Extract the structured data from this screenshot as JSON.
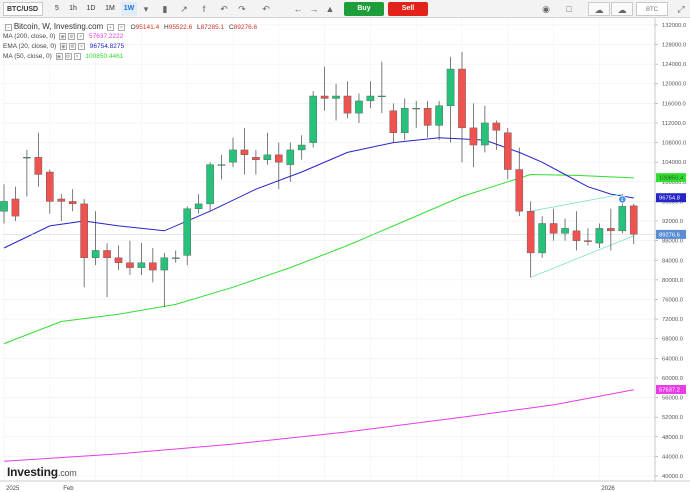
{
  "toolbar": {
    "symbol": "BTC/USD",
    "timeframes": [
      "5",
      "1h",
      "1D",
      "1M",
      "1W"
    ],
    "active_timeframe": "1W",
    "buy_label": "Buy",
    "sell_label": "Sell",
    "currency": "BTC",
    "icons": [
      "chevron-down-icon",
      "candles-icon",
      "indicator-icon",
      "fx-icon",
      "undo-icon",
      "redo-icon",
      "alert-icon",
      "camera-icon",
      "layout-icon",
      "cloud-download-icon",
      "cloud-upload-icon",
      "fullscreen-icon"
    ]
  },
  "legend": {
    "title": "Bitcoin, W, Investing.com",
    "ohlc": [
      {
        "k": "O",
        "v": "95141.4"
      },
      {
        "k": "H",
        "v": "95522.6"
      },
      {
        "k": "L",
        "v": "87285.1"
      },
      {
        "k": "C",
        "v": "89276.6"
      }
    ],
    "indicators": [
      {
        "label": "MA (200, close, 0)",
        "value": "57637.2222",
        "color": "#e63de6"
      },
      {
        "label": "EMA (20, close, 0)",
        "value": "96754.8275",
        "color": "#2424c8"
      },
      {
        "label": "MA (50, close, 0)",
        "value": "100850.4461",
        "color": "#33dd33"
      }
    ]
  },
  "logo": {
    "main": "Investing",
    "suffix": ".com"
  },
  "chart_data": {
    "type": "candlestick",
    "y_ticks": [
      "132000.0",
      "128000.0",
      "124000.0",
      "120000.0",
      "116000.0",
      "112000.0",
      "108000.0",
      "104000.0",
      "100000.0",
      "96000.0",
      "92000.0",
      "88000.0",
      "84000.0",
      "80000.0",
      "76000.0",
      "72000.0",
      "68000.0",
      "64000.0",
      "60000.0",
      "56000.0",
      "52000.0",
      "48000.0",
      "44000.0",
      "40000.0"
    ],
    "x_labels": [
      {
        "label": "2025",
        "index": 0
      },
      {
        "label": "Feb",
        "index": 5
      },
      {
        "label": "2026",
        "index": 52
      }
    ],
    "ylim": [
      40000,
      133000
    ],
    "up_color": "#26c27b",
    "down_color": "#ef5350",
    "candles": [
      {
        "o": 94000,
        "h": 99500,
        "l": 91500,
        "c": 96000
      },
      {
        "o": 96500,
        "h": 99000,
        "l": 92000,
        "c": 93000
      },
      {
        "o": 105000,
        "h": 106500,
        "l": 97000,
        "c": 105000
      },
      {
        "o": 105000,
        "h": 110000,
        "l": 99000,
        "c": 101500
      },
      {
        "o": 102000,
        "h": 102500,
        "l": 93500,
        "c": 96000
      },
      {
        "o": 96500,
        "h": 97500,
        "l": 92000,
        "c": 96000
      },
      {
        "o": 96000,
        "h": 98500,
        "l": 94000,
        "c": 95500
      },
      {
        "o": 95500,
        "h": 96500,
        "l": 78500,
        "c": 84500
      },
      {
        "o": 84500,
        "h": 94000,
        "l": 83000,
        "c": 86000
      },
      {
        "o": 86000,
        "h": 87500,
        "l": 76500,
        "c": 84500
      },
      {
        "o": 84500,
        "h": 87000,
        "l": 82000,
        "c": 83500
      },
      {
        "o": 83500,
        "h": 88000,
        "l": 81000,
        "c": 82500
      },
      {
        "o": 82500,
        "h": 87500,
        "l": 81000,
        "c": 83500
      },
      {
        "o": 83500,
        "h": 86500,
        "l": 79500,
        "c": 82000
      },
      {
        "o": 82000,
        "h": 85500,
        "l": 74500,
        "c": 84500
      },
      {
        "o": 84500,
        "h": 86000,
        "l": 83500,
        "c": 84500
      },
      {
        "o": 85000,
        "h": 95000,
        "l": 83000,
        "c": 94500
      },
      {
        "o": 94500,
        "h": 97500,
        "l": 93500,
        "c": 95500
      },
      {
        "o": 95500,
        "h": 104000,
        "l": 94000,
        "c": 103500
      },
      {
        "o": 103500,
        "h": 105500,
        "l": 100500,
        "c": 103500
      },
      {
        "o": 104000,
        "h": 109000,
        "l": 103000,
        "c": 106500
      },
      {
        "o": 106500,
        "h": 111000,
        "l": 101500,
        "c": 105500
      },
      {
        "o": 105000,
        "h": 106500,
        "l": 101500,
        "c": 104500
      },
      {
        "o": 104500,
        "h": 110000,
        "l": 103500,
        "c": 105500
      },
      {
        "o": 105500,
        "h": 108000,
        "l": 98500,
        "c": 104000
      },
      {
        "o": 103500,
        "h": 108000,
        "l": 100000,
        "c": 106500
      },
      {
        "o": 106500,
        "h": 109500,
        "l": 104500,
        "c": 107500
      },
      {
        "o": 108000,
        "h": 118500,
        "l": 107000,
        "c": 117500
      },
      {
        "o": 117500,
        "h": 123500,
        "l": 114500,
        "c": 117000
      },
      {
        "o": 117000,
        "h": 120000,
        "l": 112500,
        "c": 117500
      },
      {
        "o": 117500,
        "h": 120500,
        "l": 113000,
        "c": 114000
      },
      {
        "o": 114000,
        "h": 118000,
        "l": 112000,
        "c": 116500
      },
      {
        "o": 116500,
        "h": 120500,
        "l": 115000,
        "c": 117500
      },
      {
        "o": 117500,
        "h": 124500,
        "l": 114000,
        "c": 117500
      },
      {
        "o": 114500,
        "h": 116000,
        "l": 108000,
        "c": 110000
      },
      {
        "o": 110000,
        "h": 117000,
        "l": 108500,
        "c": 115000
      },
      {
        "o": 115000,
        "h": 116500,
        "l": 111000,
        "c": 115000
      },
      {
        "o": 115000,
        "h": 116500,
        "l": 109000,
        "c": 111500
      },
      {
        "o": 111500,
        "h": 116500,
        "l": 108500,
        "c": 115500
      },
      {
        "o": 115500,
        "h": 125500,
        "l": 108000,
        "c": 123000
      },
      {
        "o": 123000,
        "h": 126500,
        "l": 104000,
        "c": 111000
      },
      {
        "o": 111000,
        "h": 116000,
        "l": 103000,
        "c": 107500
      },
      {
        "o": 107500,
        "h": 115500,
        "l": 106000,
        "c": 112000
      },
      {
        "o": 112000,
        "h": 112500,
        "l": 106500,
        "c": 110500
      },
      {
        "o": 110000,
        "h": 111000,
        "l": 100500,
        "c": 102500
      },
      {
        "o": 102500,
        "h": 107000,
        "l": 93000,
        "c": 94000
      },
      {
        "o": 94000,
        "h": 96000,
        "l": 80500,
        "c": 85500
      },
      {
        "o": 85500,
        "h": 93000,
        "l": 84500,
        "c": 91500
      },
      {
        "o": 91500,
        "h": 94500,
        "l": 88000,
        "c": 89500
      },
      {
        "o": 89500,
        "h": 92500,
        "l": 88000,
        "c": 90500
      },
      {
        "o": 90000,
        "h": 94000,
        "l": 86000,
        "c": 88000
      },
      {
        "o": 88000,
        "h": 90500,
        "l": 87000,
        "c": 87800
      },
      {
        "o": 87500,
        "h": 91500,
        "l": 86500,
        "c": 90500
      },
      {
        "o": 90500,
        "h": 94500,
        "l": 86000,
        "c": 90000
      },
      {
        "o": 90000,
        "h": 97500,
        "l": 89500,
        "c": 95000
      },
      {
        "o": 95100,
        "h": 95500,
        "l": 87300,
        "c": 89300
      }
    ],
    "ma200": [
      [
        0,
        43000
      ],
      [
        10,
        44500
      ],
      [
        20,
        46500
      ],
      [
        30,
        49000
      ],
      [
        40,
        52000
      ],
      [
        48,
        54500
      ],
      [
        55,
        57600
      ]
    ],
    "ema20": [
      [
        0,
        86500
      ],
      [
        4,
        91000
      ],
      [
        7,
        92000
      ],
      [
        10,
        91000
      ],
      [
        14,
        90000
      ],
      [
        18,
        94000
      ],
      [
        22,
        98500
      ],
      [
        26,
        102000
      ],
      [
        30,
        106000
      ],
      [
        34,
        108000
      ],
      [
        38,
        109000
      ],
      [
        42,
        108500
      ],
      [
        45,
        106000
      ],
      [
        47,
        104000
      ],
      [
        49,
        101500
      ],
      [
        51,
        99000
      ],
      [
        53,
        97500
      ],
      [
        55,
        96700
      ]
    ],
    "ma50": [
      [
        0,
        67000
      ],
      [
        5,
        71500
      ],
      [
        10,
        73000
      ],
      [
        15,
        75000
      ],
      [
        20,
        78500
      ],
      [
        25,
        82500
      ],
      [
        30,
        87000
      ],
      [
        35,
        92000
      ],
      [
        40,
        97000
      ],
      [
        44,
        100000
      ],
      [
        46,
        101500
      ],
      [
        50,
        101300
      ],
      [
        55,
        100800
      ]
    ],
    "trend_upper": [
      [
        46,
        94000
      ],
      [
        54,
        97500
      ]
    ],
    "trend_lower": [
      [
        46,
        80500
      ],
      [
        55,
        89000
      ]
    ],
    "current_price_line": 89276.6,
    "axis_markers": [
      {
        "value": 100850.4,
        "label": "100850.4",
        "color": "#33dd33",
        "text_color": "#1b5e20"
      },
      {
        "value": 96754.8,
        "label": "96754.8",
        "color": "#2424c8",
        "text_color": "#ffffff"
      },
      {
        "value": 89276.6,
        "label": "89276.6",
        "color": "#5b8dd6",
        "text_color": "#ffffff"
      },
      {
        "value": 57637.2,
        "label": "57637.2",
        "color": "#e63de6",
        "text_color": "#ffffff"
      }
    ],
    "event_badge": {
      "index": 54,
      "value": 96400,
      "label": "4"
    }
  }
}
